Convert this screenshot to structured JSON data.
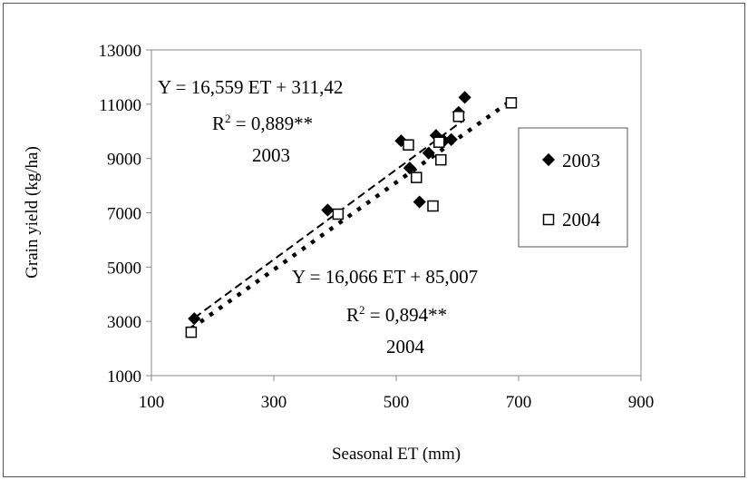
{
  "chart_data": {
    "type": "scatter",
    "xlabel": "Seasonal ET (mm)",
    "ylabel": "Grain yield (kg/ha)",
    "xlim": [
      100,
      900
    ],
    "ylim": [
      1000,
      13000
    ],
    "x_ticks": [
      100,
      300,
      500,
      700,
      900
    ],
    "y_ticks": [
      1000,
      3000,
      5000,
      7000,
      9000,
      11000,
      13000
    ],
    "legend_position": "right",
    "series": [
      {
        "name": "2003",
        "marker": "diamond-filled",
        "color": "#000000",
        "points": [
          [
            170,
            3100
          ],
          [
            388,
            7100
          ],
          [
            508,
            9650
          ],
          [
            522,
            8650
          ],
          [
            538,
            7400
          ],
          [
            553,
            9200
          ],
          [
            565,
            9850
          ],
          [
            578,
            9650
          ],
          [
            590,
            9700
          ],
          [
            602,
            10700
          ],
          [
            612,
            11250
          ]
        ],
        "fit": {
          "slope": 16.559,
          "intercept": 311.42,
          "style": "dashed",
          "x_range": [
            170,
            612
          ]
        },
        "annotation": [
          "Y = 16,559 ET + 311,42",
          "R² = 0,889**",
          "2003"
        ]
      },
      {
        "name": "2004",
        "marker": "square-open",
        "color": "#000000",
        "points": [
          [
            165,
            2600
          ],
          [
            405,
            6950
          ],
          [
            520,
            9500
          ],
          [
            533,
            8300
          ],
          [
            560,
            7250
          ],
          [
            570,
            9600
          ],
          [
            573,
            8950
          ],
          [
            602,
            10550
          ],
          [
            688,
            11050
          ]
        ],
        "fit": {
          "slope": 16.066,
          "intercept": 85.007,
          "style": "dotted",
          "x_range": [
            165,
            688
          ]
        },
        "annotation": [
          "Y = 16,066 ET + 85,007",
          "R² = 0,894**",
          "2004"
        ]
      }
    ]
  }
}
